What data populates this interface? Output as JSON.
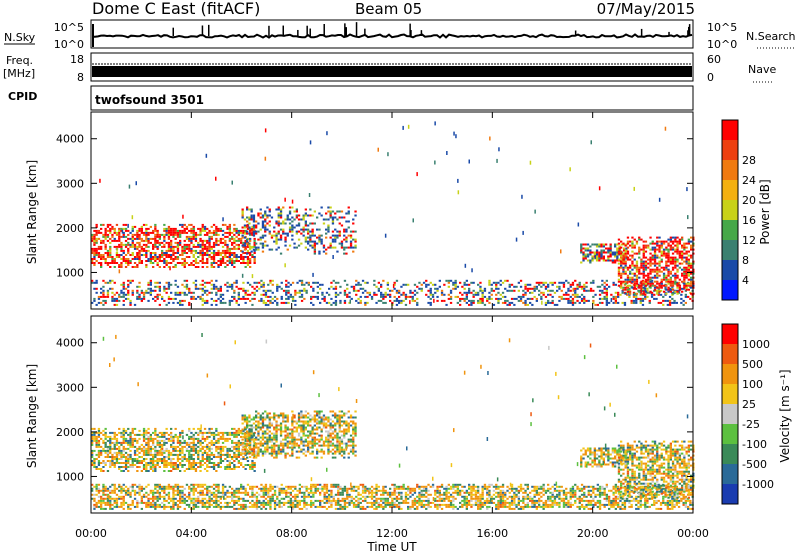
{
  "header": {
    "title": "Dome C East (fitACF)",
    "beam": "Beam 05",
    "date": "07/May/2015"
  },
  "top_panels": {
    "nsky_label": "N.Sky",
    "nsky_ticks": [
      "10^5",
      "10^0"
    ],
    "nsearch_label": "N.Search",
    "nsearch_ticks": [
      "10^5",
      "10^0"
    ],
    "freq_label": "Freq.",
    "freq_unit": "[MHz]",
    "freq_ticks": [
      "18",
      "8"
    ],
    "nave_label": "Nave",
    "nave_ticks": [
      "60",
      "0"
    ],
    "cpid_label": "CPID",
    "cpid_value": "twofsound 3501"
  },
  "chart_data": [
    {
      "type": "heatmap",
      "name": "power",
      "ylabel": "Slant Range [km]",
      "ylim": [
        180,
        4600
      ],
      "yticks": [
        1000,
        2000,
        3000,
        4000
      ],
      "xlim": [
        0,
        24
      ],
      "xticks": [
        "00:00",
        "04:00",
        "08:00",
        "12:00",
        "16:00",
        "20:00",
        "00:00"
      ],
      "colorbar_label": "Power [dB]",
      "colorbar_ticks": [
        "4",
        "8",
        "12",
        "16",
        "20",
        "24",
        "28"
      ],
      "colorbar_colors": [
        "#0018ff",
        "#1a4aa8",
        "#3a8070",
        "#46a848",
        "#c8d218",
        "#f4b010",
        "#f07a10",
        "#ee4010",
        "#ff0000"
      ],
      "regions": [
        {
          "t0": 0.0,
          "t1": 6.5,
          "r0": 1100,
          "r1": 2050,
          "level": "strong"
        },
        {
          "t0": 6.0,
          "t1": 10.5,
          "r0": 1400,
          "r1": 2450,
          "level": "weak"
        },
        {
          "t0": 0.0,
          "t1": 24.0,
          "r0": 250,
          "r1": 800,
          "level": "weak"
        },
        {
          "t0": 19.5,
          "t1": 21.3,
          "r0": 1200,
          "r1": 1650,
          "level": "medium"
        },
        {
          "t0": 21.0,
          "t1": 24.0,
          "r0": 500,
          "r1": 1800,
          "level": "strong"
        }
      ]
    },
    {
      "type": "heatmap",
      "name": "velocity",
      "ylabel": "Slant Range [km]",
      "ylim": [
        180,
        4600
      ],
      "yticks": [
        1000,
        2000,
        3000,
        4000
      ],
      "xlim": [
        0,
        24
      ],
      "xticks": [
        "00:00",
        "04:00",
        "08:00",
        "12:00",
        "16:00",
        "20:00",
        "00:00"
      ],
      "xlabel": "Time UT",
      "colorbar_label": "Velocity [m s⁻¹]",
      "colorbar_ticks": [
        "1000",
        "500",
        "100",
        "25",
        "-25",
        "-100",
        "-500",
        "-1000"
      ],
      "colorbar_colors": [
        "#1a3cb0",
        "#2a6a98",
        "#3a8a58",
        "#5cc040",
        "#c8c8c8",
        "#f2c418",
        "#f0940e",
        "#ee5a10",
        "#ff0000"
      ],
      "regions": [
        {
          "t0": 0.0,
          "t1": 6.5,
          "r0": 1100,
          "r1": 2050,
          "level": "mixed"
        },
        {
          "t0": 6.0,
          "t1": 10.5,
          "r0": 1400,
          "r1": 2450,
          "level": "mixed"
        },
        {
          "t0": 0.0,
          "t1": 24.0,
          "r0": 250,
          "r1": 800,
          "level": "mixed"
        },
        {
          "t0": 19.5,
          "t1": 21.3,
          "r0": 1200,
          "r1": 1650,
          "level": "mixed"
        },
        {
          "t0": 21.0,
          "t1": 24.0,
          "r0": 500,
          "r1": 1800,
          "level": "mixed"
        }
      ]
    }
  ]
}
